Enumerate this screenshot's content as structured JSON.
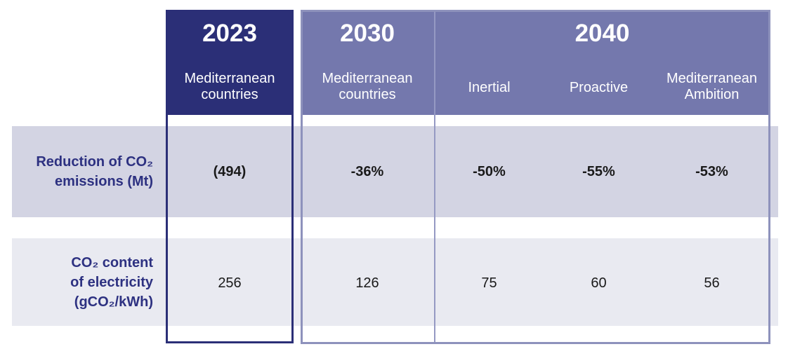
{
  "header": {
    "col2023": {
      "year": "2023",
      "subtitle": "Mediterranean\ncountries"
    },
    "col2030": {
      "year": "2030",
      "subtitle": "Mediterranean\ncountries"
    },
    "col2040": {
      "year": "2040",
      "scenarios": [
        {
          "label": "Inertial"
        },
        {
          "label": "Proactive"
        },
        {
          "label": "Mediterranean\nAmbition"
        }
      ]
    }
  },
  "rows": [
    {
      "label": "Reduction of CO₂\nemissions (Mt)",
      "values": [
        "(494)",
        "-36%",
        "-50%",
        "-55%",
        "-53%"
      ]
    },
    {
      "label": "CO₂ content\nof electricity\n(gCO₂/kWh)",
      "values": [
        "256",
        "126",
        "75",
        "60",
        "56"
      ]
    }
  ],
  "colors": {
    "navy_header": "#2b2f77",
    "purple_header": "#7478ad",
    "purple_border": "#8e92bc",
    "divider": "#9599c3",
    "row1_band": "#d3d4e3",
    "row2_band": "#e9eaf1",
    "label_text": "#2d3181",
    "value_text": "#1a1a1a",
    "header_text": "#ffffff"
  },
  "chart_data": {
    "type": "table",
    "title": "",
    "column_groups": [
      {
        "year": "2023",
        "columns": [
          "Mediterranean countries"
        ]
      },
      {
        "year": "2030",
        "columns": [
          "Mediterranean countries"
        ]
      },
      {
        "year": "2040",
        "columns": [
          "Inertial",
          "Proactive",
          "Mediterranean Ambition"
        ]
      }
    ],
    "row_headers": [
      "Reduction of CO₂ emissions (Mt)",
      "CO₂ content of electricity (gCO₂/kWh)"
    ],
    "cells": [
      [
        "(494)",
        "-36%",
        "-50%",
        "-55%",
        "-53%"
      ],
      [
        256,
        126,
        75,
        60,
        56
      ]
    ]
  }
}
